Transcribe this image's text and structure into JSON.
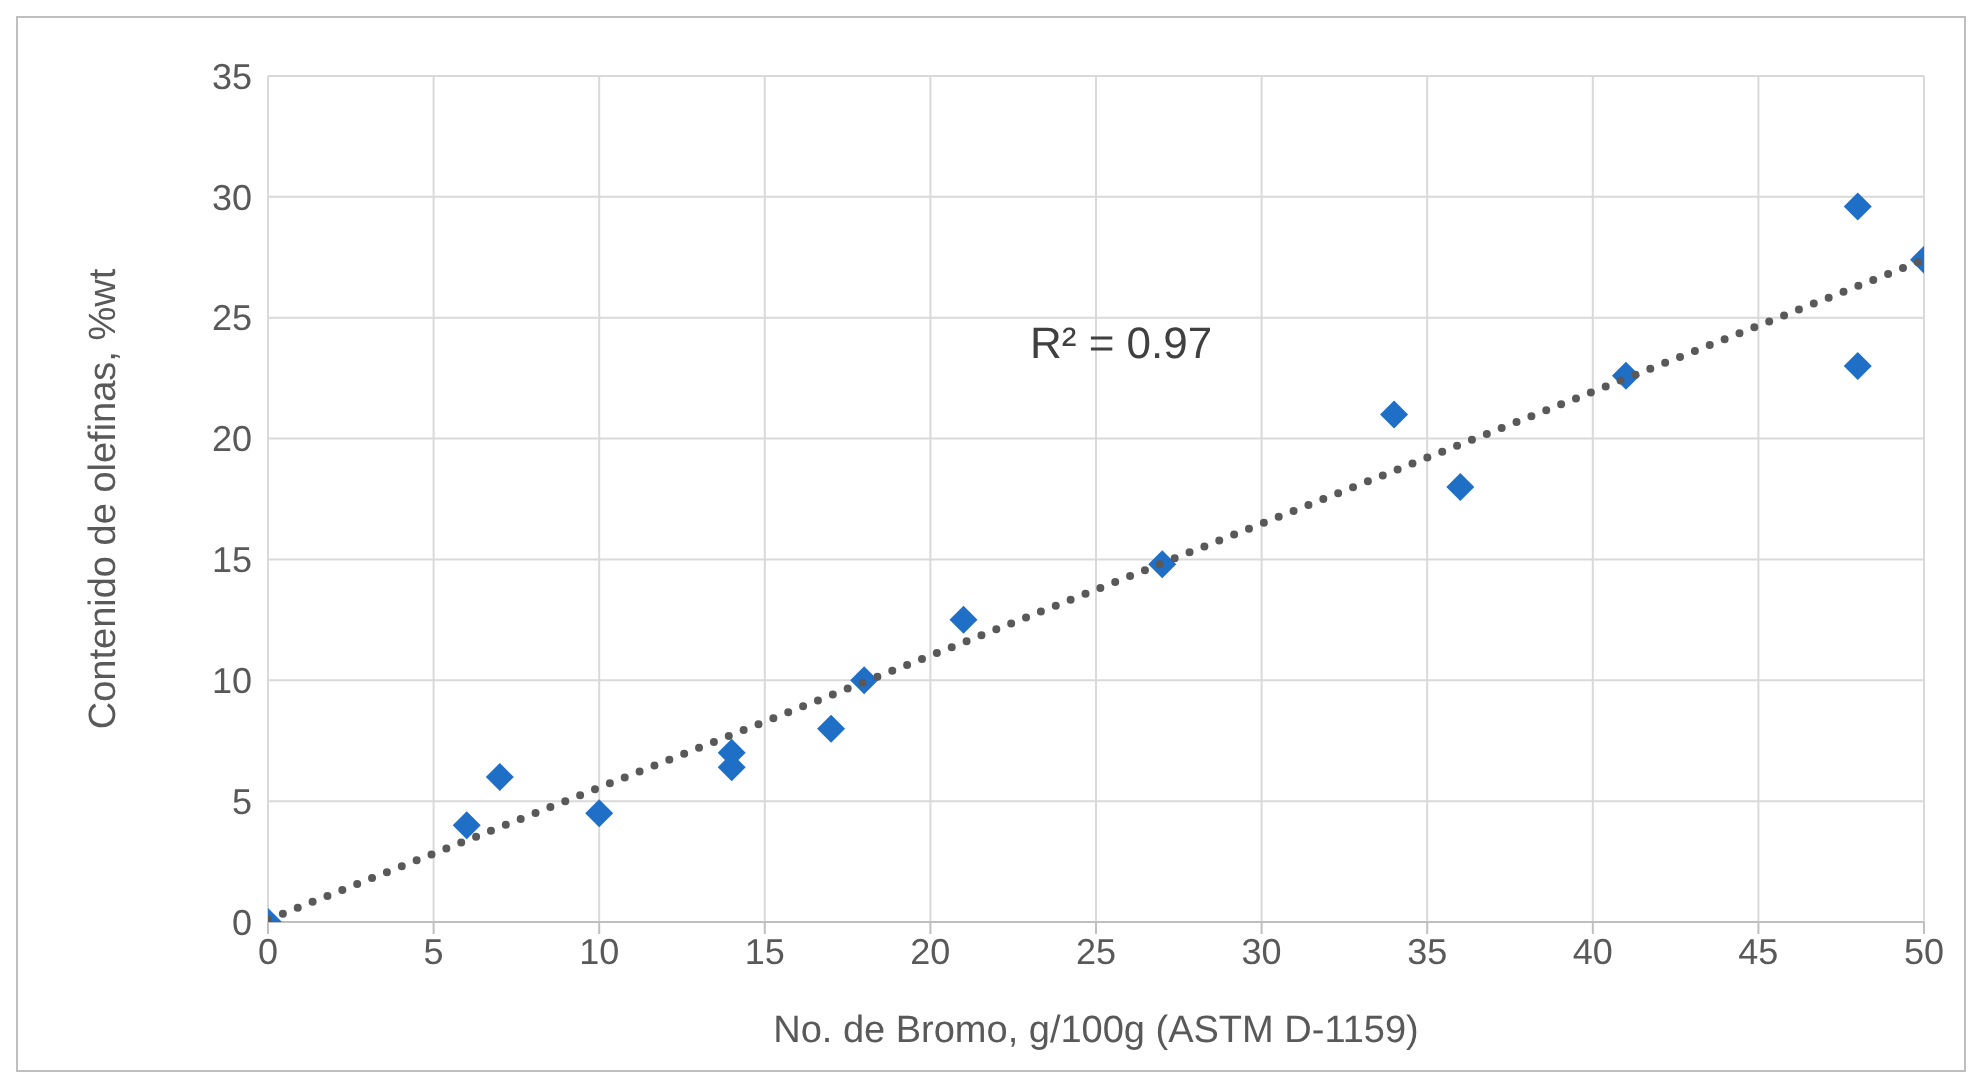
{
  "chart_data": {
    "type": "scatter",
    "xlabel": "No. de Bromo, g/100g  (ASTM D-1159)",
    "ylabel": "Contenido de olefinas, %wt",
    "xlim": [
      0,
      50
    ],
    "xticks": [
      0,
      5,
      10,
      15,
      20,
      25,
      30,
      35,
      40,
      45,
      50
    ],
    "ylim": [
      0,
      35
    ],
    "yticks": [
      0,
      5,
      10,
      15,
      20,
      25,
      30,
      35
    ],
    "grid": true,
    "annotations": [
      "R² = 0.97"
    ],
    "series": [
      {
        "color": "#1f6fc6",
        "marker": "diamond",
        "x": [
          0,
          6,
          7,
          10,
          14,
          14,
          17,
          18,
          21,
          27,
          34,
          36,
          41,
          48,
          48,
          50
        ],
        "values": [
          0,
          4,
          6,
          4.5,
          7,
          6.4,
          8,
          10,
          12.5,
          14.8,
          21,
          18,
          22.6,
          29.6,
          23,
          27.4
        ]
      },
      {
        "type": "line",
        "color": "#595959",
        "marker": "none",
        "line_style": "dotted",
        "x": [
          0,
          50
        ],
        "values": [
          0.1,
          27.4
        ]
      }
    ]
  }
}
